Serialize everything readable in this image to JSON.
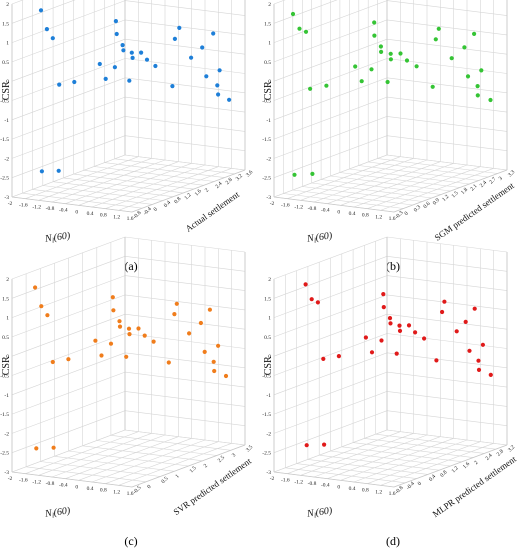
{
  "chart_data": [
    {
      "type": "scatter",
      "panel_label": "(a)",
      "xlabel": "Nl(60)",
      "ylabel": "CSR",
      "zlabel": "Actual settlement",
      "color": "#1e7fd8",
      "xticks": [
        "-2",
        "-1.6",
        "-1.2",
        "-0.8",
        "-0.4",
        "0",
        "0.4",
        "0.8",
        "1.2",
        "1.6"
      ],
      "zticks": [
        "-0.8",
        "-0.4",
        "0",
        "0.4",
        "0.8",
        "1.2",
        "1.6",
        "2",
        "2.4",
        "2.8",
        "3.2",
        "3.6"
      ],
      "yticks": [
        "-3",
        "-2.5",
        "-2",
        "-1.5",
        "-1",
        "-0.5",
        "0",
        "0.5",
        "1",
        "1.5",
        "2"
      ],
      "xlim": [
        -2,
        1.6
      ],
      "ylim": [
        -3,
        2
      ],
      "zlim": [
        -0.8,
        3.6
      ],
      "points": [
        {
          "x": -1.9,
          "y": 1.6,
          "z": 0.2
        },
        {
          "x": -1.8,
          "y": 1.1,
          "z": 0.3
        },
        {
          "x": -1.7,
          "y": 0.85,
          "z": 0.4
        },
        {
          "x": -1.95,
          "y": -2.6,
          "z": 0.3
        },
        {
          "x": -1.6,
          "y": -2.6,
          "z": 0.5
        },
        {
          "x": -1.2,
          "y": -0.2,
          "z": 0.0
        },
        {
          "x": -0.9,
          "y": -0.15,
          "z": 0.2
        },
        {
          "x": -0.5,
          "y": 1.2,
          "z": 1.3
        },
        {
          "x": -0.4,
          "y": 0.9,
          "z": 1.2
        },
        {
          "x": -0.3,
          "y": 0.6,
          "z": 1.3
        },
        {
          "x": -0.2,
          "y": 0.5,
          "z": 1.2
        },
        {
          "x": -0.1,
          "y": 0.4,
          "z": 1.4
        },
        {
          "x": 0.0,
          "y": 0.3,
          "z": 1.3
        },
        {
          "x": 0.1,
          "y": 0.4,
          "z": 1.5
        },
        {
          "x": 0.2,
          "y": 0.2,
          "z": 1.6
        },
        {
          "x": -0.3,
          "y": 0.1,
          "z": 1.0
        },
        {
          "x": -0.6,
          "y": 0.2,
          "z": 0.8
        },
        {
          "x": -0.5,
          "y": -0.2,
          "z": 0.9
        },
        {
          "x": 0.3,
          "y": 0.0,
          "z": 1.8
        },
        {
          "x": 0.4,
          "y": 0.8,
          "z": 2.6
        },
        {
          "x": 0.5,
          "y": 0.6,
          "z": 2.3
        },
        {
          "x": -0.1,
          "y": -0.3,
          "z": 1.3
        },
        {
          "x": 0.6,
          "y": 0.0,
          "z": 2.8
        },
        {
          "x": 0.7,
          "y": 0.2,
          "z": 3.1
        },
        {
          "x": 0.8,
          "y": 0.5,
          "z": 3.4
        },
        {
          "x": 0.9,
          "y": -0.5,
          "z": 3.0
        },
        {
          "x": 1.0,
          "y": -0.8,
          "z": 3.3
        },
        {
          "x": 1.1,
          "y": -1.0,
          "z": 3.2
        },
        {
          "x": 1.2,
          "y": -1.2,
          "z": 3.5
        },
        {
          "x": 1.3,
          "y": -0.3,
          "z": 3.0
        },
        {
          "x": 0.5,
          "y": -0.6,
          "z": 2.2
        }
      ]
    },
    {
      "type": "scatter",
      "panel_label": "(b)",
      "xlabel": "Nl(60)",
      "ylabel": "CSR",
      "zlabel": "SGM predicted settlement",
      "color": "#35c435",
      "xticks": [
        "-2",
        "-1.6",
        "-1.2",
        "-0.8",
        "-0.4",
        "0",
        "0.4",
        "0.8",
        "1.2",
        "1.6"
      ],
      "zticks": [
        "-0.3",
        "0",
        "0.3",
        "0.6",
        "0.9",
        "1.2",
        "1.5",
        "1.8",
        "2.1",
        "2.4",
        "2.7",
        "3",
        "3.3"
      ],
      "yticks": [
        "-3",
        "-2.5",
        "-2",
        "-1.5",
        "-1",
        "-0.5",
        "0",
        "0.5",
        "1",
        "1.5",
        "2"
      ],
      "xlim": [
        -2,
        1.6
      ],
      "ylim": [
        -3,
        2
      ],
      "zlim": [
        -0.3,
        3.3
      ],
      "points": [
        {
          "x": -1.9,
          "y": 1.6,
          "z": 0.2
        },
        {
          "x": -1.8,
          "y": 1.2,
          "z": 0.3
        },
        {
          "x": -1.7,
          "y": 1.1,
          "z": 0.4
        },
        {
          "x": -1.95,
          "y": -2.6,
          "z": 0.3
        },
        {
          "x": -1.6,
          "y": -2.6,
          "z": 0.5
        },
        {
          "x": -1.2,
          "y": -0.2,
          "z": 0.0
        },
        {
          "x": -0.9,
          "y": -0.15,
          "z": 0.2
        },
        {
          "x": -0.5,
          "y": 1.2,
          "z": 1.3
        },
        {
          "x": -0.4,
          "y": 0.9,
          "z": 1.2
        },
        {
          "x": -0.3,
          "y": 0.6,
          "z": 1.3
        },
        {
          "x": -0.2,
          "y": 0.5,
          "z": 1.2
        },
        {
          "x": -0.1,
          "y": 0.4,
          "z": 1.4
        },
        {
          "x": 0.0,
          "y": 0.3,
          "z": 1.3
        },
        {
          "x": 0.1,
          "y": 0.4,
          "z": 1.5
        },
        {
          "x": 0.2,
          "y": 0.2,
          "z": 1.6
        },
        {
          "x": -0.3,
          "y": 0.1,
          "z": 1.0
        },
        {
          "x": -0.6,
          "y": 0.2,
          "z": 0.8
        },
        {
          "x": -0.5,
          "y": -0.2,
          "z": 0.9
        },
        {
          "x": 0.3,
          "y": 0.0,
          "z": 1.8
        },
        {
          "x": 0.4,
          "y": 0.8,
          "z": 2.4
        },
        {
          "x": 0.5,
          "y": 0.6,
          "z": 2.2
        },
        {
          "x": -0.1,
          "y": -0.3,
          "z": 1.3
        },
        {
          "x": 0.6,
          "y": 0.0,
          "z": 2.6
        },
        {
          "x": 0.7,
          "y": 0.2,
          "z": 2.9
        },
        {
          "x": 0.8,
          "y": 0.5,
          "z": 3.1
        },
        {
          "x": 0.9,
          "y": -0.5,
          "z": 2.8
        },
        {
          "x": 1.0,
          "y": -0.8,
          "z": 3.0
        },
        {
          "x": 1.1,
          "y": -1.0,
          "z": 2.9
        },
        {
          "x": 1.2,
          "y": -1.2,
          "z": 3.2
        },
        {
          "x": 1.3,
          "y": -0.3,
          "z": 2.8
        },
        {
          "x": 0.5,
          "y": -0.6,
          "z": 2.1
        }
      ]
    },
    {
      "type": "scatter",
      "panel_label": "(c)",
      "xlabel": "Nl(60)",
      "ylabel": "CSR",
      "zlabel": "SVR predicted settlement",
      "color": "#f07d1c",
      "xticks": [
        "-2",
        "-1.6",
        "-1.2",
        "-0.8",
        "-0.4",
        "0",
        "0.4",
        "0.8",
        "1.2",
        "1.6"
      ],
      "zticks": [
        "-0.5",
        "0",
        "0.5",
        "1",
        "1.5",
        "2",
        "2.5",
        "3",
        "3.5"
      ],
      "yticks": [
        "-3",
        "-2.5",
        "-2",
        "-1.5",
        "-1",
        "-0.5",
        "0",
        "0.5",
        "1",
        "1.5",
        "2"
      ],
      "xlim": [
        -2,
        1.6
      ],
      "ylim": [
        -3,
        2
      ],
      "zlim": [
        -0.5,
        3.5
      ],
      "points": [
        {
          "x": -1.9,
          "y": 1.6,
          "z": 0.2
        },
        {
          "x": -1.8,
          "y": 1.1,
          "z": 0.3
        },
        {
          "x": -1.7,
          "y": 0.85,
          "z": 0.4
        },
        {
          "x": -1.95,
          "y": -2.6,
          "z": 0.3
        },
        {
          "x": -1.6,
          "y": -2.6,
          "z": 0.5
        },
        {
          "x": -1.2,
          "y": -0.2,
          "z": 0.0
        },
        {
          "x": -0.9,
          "y": -0.15,
          "z": 0.2
        },
        {
          "x": -0.5,
          "y": 1.2,
          "z": 1.3
        },
        {
          "x": -0.4,
          "y": 0.9,
          "z": 1.2
        },
        {
          "x": -0.3,
          "y": 0.6,
          "z": 1.3
        },
        {
          "x": -0.2,
          "y": 0.5,
          "z": 1.2
        },
        {
          "x": -0.1,
          "y": 0.4,
          "z": 1.4
        },
        {
          "x": 0.0,
          "y": 0.3,
          "z": 1.3
        },
        {
          "x": 0.1,
          "y": 0.4,
          "z": 1.5
        },
        {
          "x": 0.2,
          "y": 0.2,
          "z": 1.6
        },
        {
          "x": -0.3,
          "y": 0.1,
          "z": 1.0
        },
        {
          "x": -0.6,
          "y": 0.2,
          "z": 0.8
        },
        {
          "x": -0.5,
          "y": -0.2,
          "z": 0.9
        },
        {
          "x": 0.3,
          "y": 0.0,
          "z": 1.8
        },
        {
          "x": 0.4,
          "y": 0.8,
          "z": 2.5
        },
        {
          "x": 0.5,
          "y": 0.6,
          "z": 2.3
        },
        {
          "x": -0.1,
          "y": -0.3,
          "z": 1.3
        },
        {
          "x": 0.6,
          "y": 0.0,
          "z": 2.7
        },
        {
          "x": 0.7,
          "y": 0.2,
          "z": 3.0
        },
        {
          "x": 0.8,
          "y": 0.5,
          "z": 3.2
        },
        {
          "x": 0.9,
          "y": -0.5,
          "z": 2.9
        },
        {
          "x": 1.0,
          "y": -0.8,
          "z": 3.1
        },
        {
          "x": 1.1,
          "y": -1.0,
          "z": 3.0
        },
        {
          "x": 1.2,
          "y": -1.2,
          "z": 3.3
        },
        {
          "x": 1.3,
          "y": -0.3,
          "z": 2.9
        },
        {
          "x": 0.5,
          "y": -0.6,
          "z": 2.1
        }
      ]
    },
    {
      "type": "scatter",
      "panel_label": "(d)",
      "xlabel": "Nl(60)",
      "ylabel": "CSR",
      "zlabel": "MLPR predicted settlement",
      "color": "#e01a1a",
      "xticks": [
        "-2",
        "-1.6",
        "-1.2",
        "-0.8",
        "-0.4",
        "0",
        "0.4",
        "0.8",
        "1.2",
        "1.6"
      ],
      "zticks": [
        "-0.8",
        "-0.4",
        "0",
        "0.4",
        "0.8",
        "1.2",
        "1.6",
        "2",
        "2.4",
        "2.8",
        "3.2"
      ],
      "yticks": [
        "-3",
        "-2.5",
        "-2",
        "-1.5",
        "-1",
        "-0.5",
        "0",
        "0.5",
        "1",
        "1.5",
        "2"
      ],
      "xlim": [
        -2,
        1.6
      ],
      "ylim": [
        -3,
        2
      ],
      "zlim": [
        -0.8,
        3.2
      ],
      "points": [
        {
          "x": -1.9,
          "y": 1.6,
          "z": 0.2
        },
        {
          "x": -1.8,
          "y": 1.2,
          "z": 0.3
        },
        {
          "x": -1.7,
          "y": 1.1,
          "z": 0.4
        },
        {
          "x": -1.95,
          "y": -2.6,
          "z": 0.3
        },
        {
          "x": -1.6,
          "y": -2.6,
          "z": 0.5
        },
        {
          "x": -1.2,
          "y": -0.2,
          "z": 0.0
        },
        {
          "x": -0.9,
          "y": -0.15,
          "z": 0.2
        },
        {
          "x": -0.5,
          "y": 1.2,
          "z": 1.3
        },
        {
          "x": -0.4,
          "y": 0.9,
          "z": 1.2
        },
        {
          "x": -0.3,
          "y": 0.6,
          "z": 1.3
        },
        {
          "x": -0.2,
          "y": 0.5,
          "z": 1.2
        },
        {
          "x": -0.1,
          "y": 0.4,
          "z": 1.4
        },
        {
          "x": 0.0,
          "y": 0.3,
          "z": 1.3
        },
        {
          "x": 0.1,
          "y": 0.4,
          "z": 1.5
        },
        {
          "x": 0.2,
          "y": 0.2,
          "z": 1.6
        },
        {
          "x": -0.3,
          "y": 0.1,
          "z": 1.0
        },
        {
          "x": -0.6,
          "y": 0.2,
          "z": 0.8
        },
        {
          "x": -0.5,
          "y": -0.2,
          "z": 0.9
        },
        {
          "x": 0.3,
          "y": 0.0,
          "z": 1.8
        },
        {
          "x": 0.4,
          "y": 0.8,
          "z": 2.4
        },
        {
          "x": 0.5,
          "y": 0.6,
          "z": 2.2
        },
        {
          "x": -0.1,
          "y": -0.3,
          "z": 1.3
        },
        {
          "x": 0.6,
          "y": 0.0,
          "z": 2.6
        },
        {
          "x": 0.7,
          "y": 0.2,
          "z": 2.8
        },
        {
          "x": 0.8,
          "y": 0.5,
          "z": 3.0
        },
        {
          "x": 0.9,
          "y": -0.5,
          "z": 2.7
        },
        {
          "x": 1.0,
          "y": -0.8,
          "z": 2.9
        },
        {
          "x": 1.1,
          "y": -1.0,
          "z": 2.8
        },
        {
          "x": 1.2,
          "y": -1.2,
          "z": 3.1
        },
        {
          "x": 1.3,
          "y": -0.3,
          "z": 2.7
        },
        {
          "x": 0.5,
          "y": -0.6,
          "z": 2.0
        }
      ]
    }
  ]
}
